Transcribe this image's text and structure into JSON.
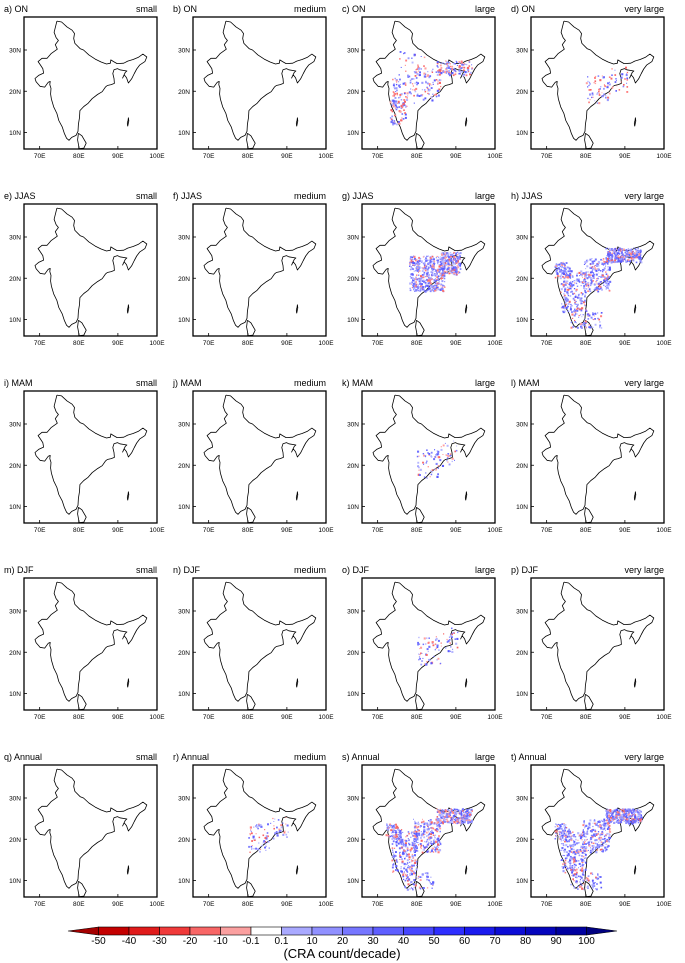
{
  "figure": {
    "panels": [
      {
        "label": "a) ON",
        "size": "small",
        "density": 0
      },
      {
        "label": "b) ON",
        "size": "medium",
        "density": 0
      },
      {
        "label": "c) ON",
        "size": "large",
        "density": 2
      },
      {
        "label": "d) ON",
        "size": "very large",
        "density": 1
      },
      {
        "label": "e) JJAS",
        "size": "small",
        "density": 0
      },
      {
        "label": "f) JJAS",
        "size": "medium",
        "density": 0
      },
      {
        "label": "g) JJAS",
        "size": "large",
        "density": 3
      },
      {
        "label": "h) JJAS",
        "size": "very large",
        "density": 4
      },
      {
        "label": "i) MAM",
        "size": "small",
        "density": 0
      },
      {
        "label": "j) MAM",
        "size": "medium",
        "density": 0
      },
      {
        "label": "k) MAM",
        "size": "large",
        "density": 1
      },
      {
        "label": "l) MAM",
        "size": "very large",
        "density": 0
      },
      {
        "label": "m) DJF",
        "size": "small",
        "density": 0
      },
      {
        "label": "n) DJF",
        "size": "medium",
        "density": 0
      },
      {
        "label": "o) DJF",
        "size": "large",
        "density": 1
      },
      {
        "label": "p) DJF",
        "size": "very large",
        "density": 0
      },
      {
        "label": "q) Annual",
        "size": "small",
        "density": 0
      },
      {
        "label": "r) Annual",
        "size": "medium",
        "density": 1
      },
      {
        "label": "s) Annual",
        "size": "large",
        "density": 4
      },
      {
        "label": "t) Annual",
        "size": "very large",
        "density": 4
      }
    ],
    "lat_ticks": [
      "10N",
      "20N",
      "30N"
    ],
    "lon_ticks": [
      "70E",
      "80E",
      "90E",
      "100E"
    ],
    "colorbar": {
      "labels": [
        "-50",
        "-40",
        "-30",
        "-20",
        "-10",
        "-0.1",
        "0.1",
        "10",
        "20",
        "30",
        "40",
        "50",
        "60",
        "70",
        "80",
        "90",
        "100"
      ],
      "colors": [
        "#a50000",
        "#c40000",
        "#e01b1b",
        "#f03a3a",
        "#f86666",
        "#fba0a0",
        "#ffffff",
        "#a9a9ff",
        "#9090ff",
        "#7676ff",
        "#5e5eff",
        "#4646ff",
        "#2e2eff",
        "#1a1aee",
        "#0c0cd6",
        "#0505bd",
        "#0000a0",
        "#000080"
      ],
      "title": "(CRA count/decade)"
    }
  }
}
